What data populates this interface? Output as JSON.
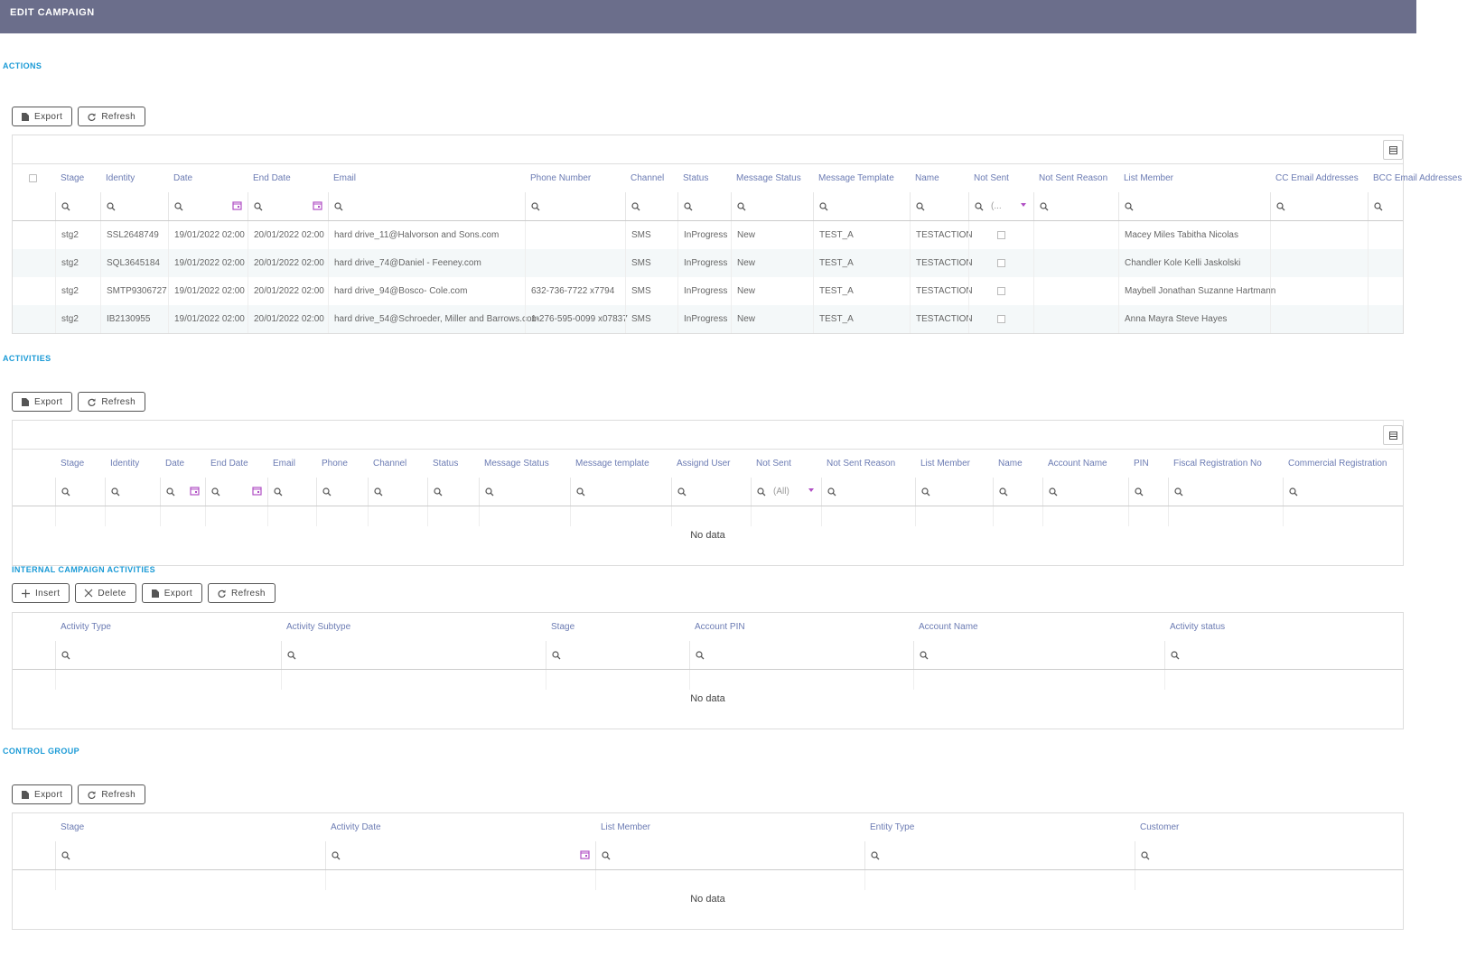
{
  "header": {
    "title": "EDIT CAMPAIGN"
  },
  "sections": [
    {
      "title": "ACTIONS",
      "buttons": [
        "Export",
        "Refresh"
      ],
      "columns": [
        "Stage",
        "Identity",
        "Date",
        "End Date",
        "Email",
        "Phone Number",
        "Channel",
        "Status",
        "Message Status",
        "Message Template",
        "Name",
        "Not Sent",
        "Not Sent Reason",
        "List Member",
        "CC Email Addresses",
        "BCC Email Addresses"
      ],
      "filters": [
        null,
        null,
        null,
        null,
        null,
        null,
        null,
        null,
        null,
        null,
        null,
        "(...",
        null,
        null,
        null,
        null
      ],
      "rows": [
        [
          "stg2",
          "SSL2648749",
          "19/01/2022 02:00",
          "20/01/2022 02:00",
          "hard drive_11@Halvorson and Sons.com",
          null,
          "SMS",
          "InProgress",
          "New",
          "TEST_A",
          "TESTACTION",
          false,
          null,
          "Macey Miles Tabitha Nicolas",
          null,
          null
        ],
        [
          "stg2",
          "SQL3645184",
          "19/01/2022 02:00",
          "20/01/2022 02:00",
          "hard drive_74@Daniel - Feeney.com",
          null,
          "SMS",
          "InProgress",
          "New",
          "TEST_A",
          "TESTACTION",
          false,
          null,
          "Chandler Kole Kelli Jaskolski",
          null,
          null
        ],
        [
          "stg2",
          "SMTP9306727",
          "19/01/2022 02:00",
          "20/01/2022 02:00",
          "hard drive_94@Bosco- Cole.com",
          "632-736-7722 x7794",
          "SMS",
          "InProgress",
          "New",
          "TEST_A",
          "TESTACTION",
          false,
          null,
          "Maybell Jonathan Suzanne Hartmann",
          null,
          null
        ],
        [
          "stg2",
          "IB2130955",
          "19/01/2022 02:00",
          "20/01/2022 02:00",
          "hard drive_54@Schroeder, Miller and Barrows.com",
          "1-276-595-0099 x07837",
          "SMS",
          "InProgress",
          "New",
          "TEST_A",
          "TESTACTION",
          false,
          null,
          "Anna Mayra Steve Hayes",
          null,
          null
        ]
      ]
    },
    {
      "title": "ACTIVITIES",
      "buttons": [
        "Export",
        "Refresh"
      ],
      "columns": [
        "Stage",
        "Identity",
        "Date",
        "End Date",
        "Email",
        "Phone",
        "Channel",
        "Status",
        "Message Status",
        "Message template",
        "Assignd User",
        "Not Sent",
        "Not Sent Reason",
        "List Member",
        "Name",
        "Account Name",
        "PIN",
        "Fiscal Registration No",
        "Commercial Registration"
      ],
      "filters": [
        null,
        null,
        null,
        null,
        null,
        null,
        null,
        null,
        null,
        null,
        null,
        "(All)",
        null,
        null,
        null,
        null,
        null,
        null,
        null
      ],
      "no_data": "No data"
    },
    {
      "title": "INTERNAL CAMPAIGN ACTIVITIES",
      "buttons": [
        "Insert",
        "Delete",
        "Export",
        "Refresh"
      ],
      "columns": [
        "Activity Type",
        "Activity Subtype",
        "Stage",
        "Account PIN",
        "Account Name",
        "Activity status"
      ],
      "no_data": "No data"
    },
    {
      "title": "CONTROL GROUP",
      "buttons": [
        "Export",
        "Refresh"
      ],
      "columns": [
        "Stage",
        "Activity Date",
        "List Member",
        "Entity Type",
        "Customer"
      ],
      "no_data": "No data"
    }
  ]
}
